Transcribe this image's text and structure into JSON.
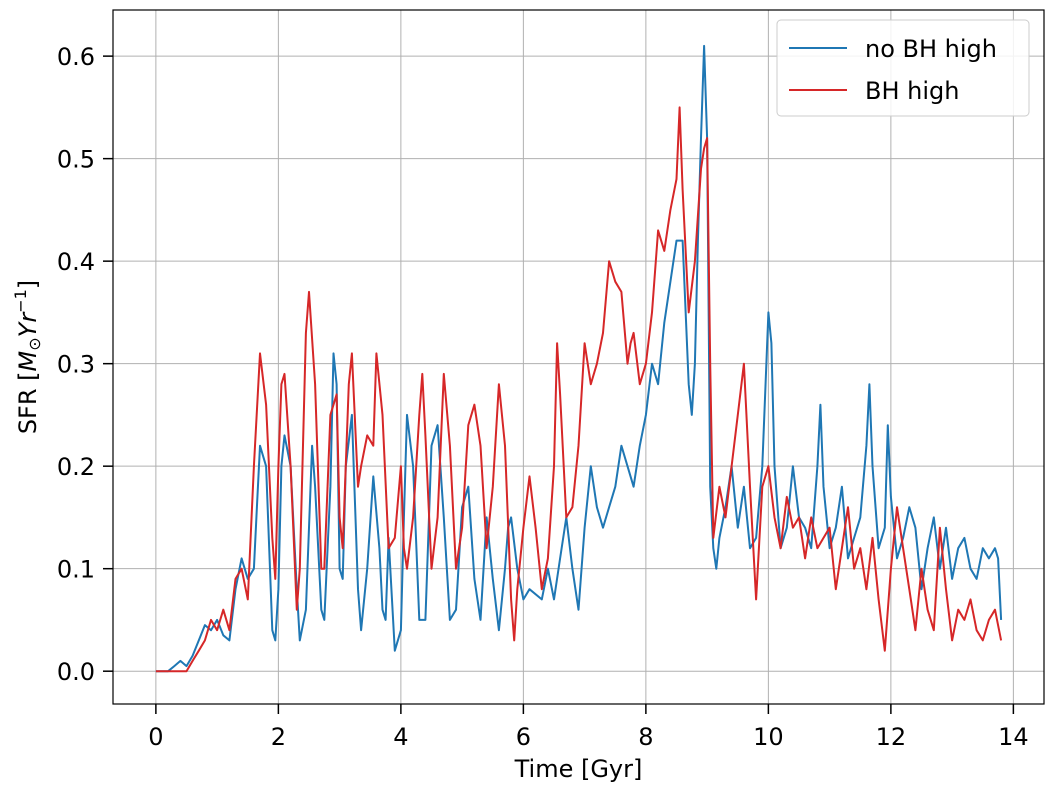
{
  "chart_data": {
    "type": "line",
    "xlabel": "Time [Gyr]",
    "ylabel": "SFR [M⊙Yr⁻¹]",
    "ylabel_parts": {
      "prefix": "SFR [",
      "m": "M",
      "sun": "⊙",
      "yr": "Yr",
      "exp": "−1",
      "suffix": "]"
    },
    "xlim": [
      -0.7,
      14.5
    ],
    "ylim": [
      -0.032,
      0.645
    ],
    "xticks": [
      0,
      2,
      4,
      6,
      8,
      10,
      12,
      14
    ],
    "xtick_labels": [
      "0",
      "2",
      "4",
      "6",
      "8",
      "10",
      "12",
      "14"
    ],
    "yticks": [
      0.0,
      0.1,
      0.2,
      0.3,
      0.4,
      0.5,
      0.6
    ],
    "ytick_labels": [
      "0.0",
      "0.1",
      "0.2",
      "0.3",
      "0.4",
      "0.5",
      "0.6"
    ],
    "grid": true,
    "legend_position": "top-right",
    "series": [
      {
        "name": "no BH high",
        "color": "#1f77b4",
        "points": [
          [
            0,
            0
          ],
          [
            0.2,
            0
          ],
          [
            0.3,
            0.005
          ],
          [
            0.4,
            0.01
          ],
          [
            0.5,
            0.005
          ],
          [
            0.6,
            0.015
          ],
          [
            0.7,
            0.03
          ],
          [
            0.8,
            0.045
          ],
          [
            0.9,
            0.04
          ],
          [
            1.0,
            0.05
          ],
          [
            1.1,
            0.035
          ],
          [
            1.2,
            0.03
          ],
          [
            1.3,
            0.08
          ],
          [
            1.4,
            0.11
          ],
          [
            1.5,
            0.09
          ],
          [
            1.6,
            0.1
          ],
          [
            1.65,
            0.16
          ],
          [
            1.7,
            0.22
          ],
          [
            1.8,
            0.2
          ],
          [
            1.85,
            0.12
          ],
          [
            1.9,
            0.04
          ],
          [
            1.95,
            0.03
          ],
          [
            2.0,
            0.08
          ],
          [
            2.05,
            0.2
          ],
          [
            2.1,
            0.23
          ],
          [
            2.2,
            0.2
          ],
          [
            2.3,
            0.08
          ],
          [
            2.35,
            0.03
          ],
          [
            2.45,
            0.06
          ],
          [
            2.55,
            0.22
          ],
          [
            2.6,
            0.18
          ],
          [
            2.7,
            0.06
          ],
          [
            2.75,
            0.05
          ],
          [
            2.85,
            0.18
          ],
          [
            2.9,
            0.31
          ],
          [
            2.95,
            0.28
          ],
          [
            3.0,
            0.1
          ],
          [
            3.05,
            0.09
          ],
          [
            3.1,
            0.2
          ],
          [
            3.2,
            0.25
          ],
          [
            3.3,
            0.08
          ],
          [
            3.35,
            0.04
          ],
          [
            3.45,
            0.1
          ],
          [
            3.55,
            0.19
          ],
          [
            3.65,
            0.12
          ],
          [
            3.7,
            0.06
          ],
          [
            3.75,
            0.05
          ],
          [
            3.8,
            0.13
          ],
          [
            3.9,
            0.02
          ],
          [
            4.0,
            0.04
          ],
          [
            4.05,
            0.15
          ],
          [
            4.1,
            0.25
          ],
          [
            4.2,
            0.2
          ],
          [
            4.3,
            0.05
          ],
          [
            4.4,
            0.05
          ],
          [
            4.5,
            0.22
          ],
          [
            4.6,
            0.24
          ],
          [
            4.7,
            0.15
          ],
          [
            4.8,
            0.05
          ],
          [
            4.9,
            0.06
          ],
          [
            5.0,
            0.16
          ],
          [
            5.1,
            0.18
          ],
          [
            5.2,
            0.09
          ],
          [
            5.3,
            0.05
          ],
          [
            5.4,
            0.15
          ],
          [
            5.5,
            0.09
          ],
          [
            5.6,
            0.04
          ],
          [
            5.7,
            0.1
          ],
          [
            5.75,
            0.14
          ],
          [
            5.8,
            0.15
          ],
          [
            5.9,
            0.1
          ],
          [
            6.0,
            0.07
          ],
          [
            6.1,
            0.08
          ],
          [
            6.3,
            0.07
          ],
          [
            6.4,
            0.1
          ],
          [
            6.5,
            0.07
          ],
          [
            6.6,
            0.11
          ],
          [
            6.7,
            0.15
          ],
          [
            6.8,
            0.1
          ],
          [
            6.9,
            0.06
          ],
          [
            7.0,
            0.14
          ],
          [
            7.1,
            0.2
          ],
          [
            7.2,
            0.16
          ],
          [
            7.3,
            0.14
          ],
          [
            7.4,
            0.16
          ],
          [
            7.5,
            0.18
          ],
          [
            7.6,
            0.22
          ],
          [
            7.7,
            0.2
          ],
          [
            7.8,
            0.18
          ],
          [
            7.9,
            0.22
          ],
          [
            8.0,
            0.25
          ],
          [
            8.1,
            0.3
          ],
          [
            8.2,
            0.28
          ],
          [
            8.3,
            0.34
          ],
          [
            8.4,
            0.38
          ],
          [
            8.5,
            0.42
          ],
          [
            8.6,
            0.42
          ],
          [
            8.7,
            0.28
          ],
          [
            8.75,
            0.25
          ],
          [
            8.8,
            0.3
          ],
          [
            8.85,
            0.42
          ],
          [
            8.9,
            0.52
          ],
          [
            8.95,
            0.61
          ],
          [
            9.0,
            0.52
          ],
          [
            9.05,
            0.18
          ],
          [
            9.1,
            0.12
          ],
          [
            9.15,
            0.1
          ],
          [
            9.2,
            0.13
          ],
          [
            9.3,
            0.16
          ],
          [
            9.4,
            0.2
          ],
          [
            9.5,
            0.14
          ],
          [
            9.6,
            0.18
          ],
          [
            9.7,
            0.12
          ],
          [
            9.8,
            0.13
          ],
          [
            9.9,
            0.2
          ],
          [
            10.0,
            0.35
          ],
          [
            10.05,
            0.32
          ],
          [
            10.1,
            0.2
          ],
          [
            10.2,
            0.12
          ],
          [
            10.3,
            0.14
          ],
          [
            10.4,
            0.2
          ],
          [
            10.5,
            0.15
          ],
          [
            10.6,
            0.14
          ],
          [
            10.7,
            0.12
          ],
          [
            10.8,
            0.2
          ],
          [
            10.85,
            0.26
          ],
          [
            10.9,
            0.18
          ],
          [
            11.0,
            0.12
          ],
          [
            11.1,
            0.14
          ],
          [
            11.2,
            0.18
          ],
          [
            11.3,
            0.11
          ],
          [
            11.4,
            0.13
          ],
          [
            11.5,
            0.15
          ],
          [
            11.6,
            0.22
          ],
          [
            11.65,
            0.28
          ],
          [
            11.7,
            0.2
          ],
          [
            11.8,
            0.12
          ],
          [
            11.9,
            0.14
          ],
          [
            11.95,
            0.24
          ],
          [
            12.0,
            0.17
          ],
          [
            12.1,
            0.11
          ],
          [
            12.2,
            0.13
          ],
          [
            12.3,
            0.16
          ],
          [
            12.4,
            0.14
          ],
          [
            12.5,
            0.08
          ],
          [
            12.6,
            0.12
          ],
          [
            12.7,
            0.15
          ],
          [
            12.8,
            0.1
          ],
          [
            12.9,
            0.14
          ],
          [
            13.0,
            0.09
          ],
          [
            13.1,
            0.12
          ],
          [
            13.2,
            0.13
          ],
          [
            13.3,
            0.1
          ],
          [
            13.4,
            0.09
          ],
          [
            13.5,
            0.12
          ],
          [
            13.6,
            0.11
          ],
          [
            13.7,
            0.12
          ],
          [
            13.75,
            0.11
          ],
          [
            13.8,
            0.05
          ]
        ]
      },
      {
        "name": "BH high",
        "color": "#d62728",
        "points": [
          [
            0,
            0
          ],
          [
            0.5,
            0
          ],
          [
            0.6,
            0.01
          ],
          [
            0.7,
            0.02
          ],
          [
            0.8,
            0.03
          ],
          [
            0.9,
            0.05
          ],
          [
            1.0,
            0.04
          ],
          [
            1.1,
            0.06
          ],
          [
            1.2,
            0.04
          ],
          [
            1.3,
            0.09
          ],
          [
            1.4,
            0.1
          ],
          [
            1.5,
            0.07
          ],
          [
            1.6,
            0.2
          ],
          [
            1.7,
            0.31
          ],
          [
            1.8,
            0.26
          ],
          [
            1.9,
            0.13
          ],
          [
            1.95,
            0.09
          ],
          [
            2.0,
            0.2
          ],
          [
            2.05,
            0.28
          ],
          [
            2.1,
            0.29
          ],
          [
            2.2,
            0.2
          ],
          [
            2.3,
            0.06
          ],
          [
            2.35,
            0.1
          ],
          [
            2.45,
            0.33
          ],
          [
            2.5,
            0.37
          ],
          [
            2.6,
            0.28
          ],
          [
            2.7,
            0.1
          ],
          [
            2.75,
            0.1
          ],
          [
            2.85,
            0.25
          ],
          [
            2.95,
            0.27
          ],
          [
            3.0,
            0.15
          ],
          [
            3.05,
            0.12
          ],
          [
            3.15,
            0.28
          ],
          [
            3.2,
            0.31
          ],
          [
            3.3,
            0.18
          ],
          [
            3.35,
            0.2
          ],
          [
            3.45,
            0.23
          ],
          [
            3.55,
            0.22
          ],
          [
            3.6,
            0.31
          ],
          [
            3.7,
            0.25
          ],
          [
            3.8,
            0.12
          ],
          [
            3.9,
            0.13
          ],
          [
            4.0,
            0.2
          ],
          [
            4.05,
            0.12
          ],
          [
            4.1,
            0.1
          ],
          [
            4.2,
            0.15
          ],
          [
            4.3,
            0.25
          ],
          [
            4.35,
            0.29
          ],
          [
            4.4,
            0.23
          ],
          [
            4.5,
            0.1
          ],
          [
            4.6,
            0.15
          ],
          [
            4.7,
            0.29
          ],
          [
            4.8,
            0.22
          ],
          [
            4.9,
            0.1
          ],
          [
            5.0,
            0.14
          ],
          [
            5.1,
            0.24
          ],
          [
            5.2,
            0.26
          ],
          [
            5.3,
            0.22
          ],
          [
            5.4,
            0.12
          ],
          [
            5.5,
            0.18
          ],
          [
            5.6,
            0.28
          ],
          [
            5.7,
            0.22
          ],
          [
            5.8,
            0.07
          ],
          [
            5.85,
            0.03
          ],
          [
            5.9,
            0.08
          ],
          [
            6.0,
            0.14
          ],
          [
            6.1,
            0.19
          ],
          [
            6.2,
            0.14
          ],
          [
            6.3,
            0.08
          ],
          [
            6.4,
            0.11
          ],
          [
            6.5,
            0.2
          ],
          [
            6.55,
            0.32
          ],
          [
            6.6,
            0.27
          ],
          [
            6.7,
            0.15
          ],
          [
            6.8,
            0.16
          ],
          [
            6.9,
            0.22
          ],
          [
            7.0,
            0.32
          ],
          [
            7.1,
            0.28
          ],
          [
            7.2,
            0.3
          ],
          [
            7.3,
            0.33
          ],
          [
            7.4,
            0.4
          ],
          [
            7.5,
            0.38
          ],
          [
            7.6,
            0.37
          ],
          [
            7.7,
            0.3
          ],
          [
            7.75,
            0.32
          ],
          [
            7.8,
            0.33
          ],
          [
            7.9,
            0.28
          ],
          [
            8.0,
            0.3
          ],
          [
            8.1,
            0.35
          ],
          [
            8.2,
            0.43
          ],
          [
            8.3,
            0.41
          ],
          [
            8.4,
            0.45
          ],
          [
            8.5,
            0.48
          ],
          [
            8.55,
            0.55
          ],
          [
            8.6,
            0.47
          ],
          [
            8.7,
            0.35
          ],
          [
            8.8,
            0.4
          ],
          [
            8.9,
            0.49
          ],
          [
            8.95,
            0.51
          ],
          [
            9.0,
            0.52
          ],
          [
            9.05,
            0.3
          ],
          [
            9.1,
            0.13
          ],
          [
            9.2,
            0.18
          ],
          [
            9.3,
            0.15
          ],
          [
            9.4,
            0.2
          ],
          [
            9.5,
            0.25
          ],
          [
            9.6,
            0.3
          ],
          [
            9.7,
            0.18
          ],
          [
            9.8,
            0.07
          ],
          [
            9.9,
            0.18
          ],
          [
            10.0,
            0.2
          ],
          [
            10.1,
            0.15
          ],
          [
            10.2,
            0.12
          ],
          [
            10.3,
            0.17
          ],
          [
            10.4,
            0.14
          ],
          [
            10.5,
            0.15
          ],
          [
            10.6,
            0.11
          ],
          [
            10.7,
            0.15
          ],
          [
            10.8,
            0.12
          ],
          [
            10.9,
            0.13
          ],
          [
            11.0,
            0.14
          ],
          [
            11.1,
            0.08
          ],
          [
            11.2,
            0.12
          ],
          [
            11.3,
            0.16
          ],
          [
            11.4,
            0.1
          ],
          [
            11.5,
            0.12
          ],
          [
            11.6,
            0.08
          ],
          [
            11.7,
            0.13
          ],
          [
            11.8,
            0.07
          ],
          [
            11.9,
            0.02
          ],
          [
            12.0,
            0.1
          ],
          [
            12.1,
            0.16
          ],
          [
            12.2,
            0.12
          ],
          [
            12.3,
            0.08
          ],
          [
            12.4,
            0.04
          ],
          [
            12.5,
            0.1
          ],
          [
            12.6,
            0.06
          ],
          [
            12.7,
            0.04
          ],
          [
            12.8,
            0.14
          ],
          [
            12.9,
            0.08
          ],
          [
            13.0,
            0.03
          ],
          [
            13.1,
            0.06
          ],
          [
            13.2,
            0.05
          ],
          [
            13.3,
            0.07
          ],
          [
            13.4,
            0.04
          ],
          [
            13.5,
            0.03
          ],
          [
            13.6,
            0.05
          ],
          [
            13.7,
            0.06
          ],
          [
            13.8,
            0.03
          ]
        ]
      }
    ]
  }
}
